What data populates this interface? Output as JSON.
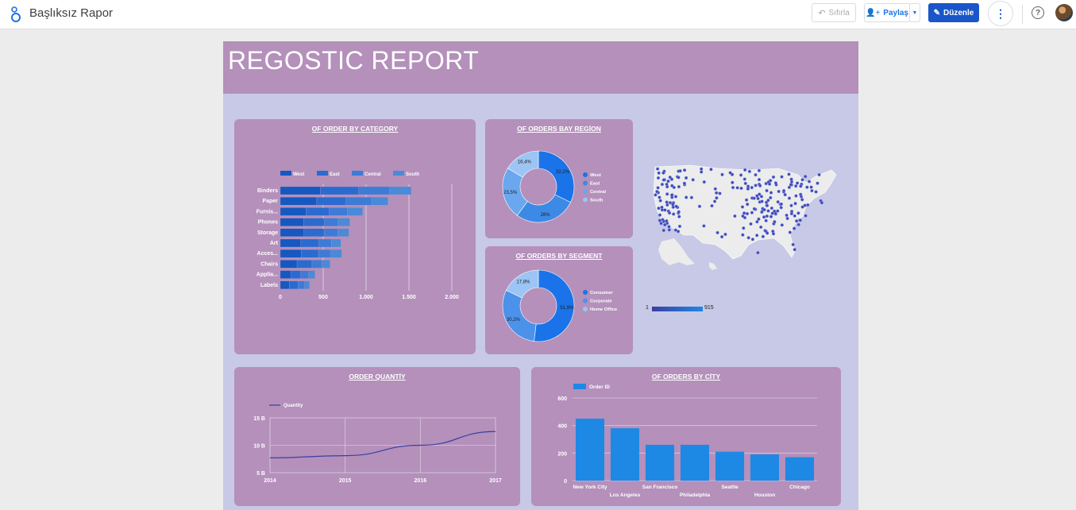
{
  "app": {
    "title": "Başlıksız Rapor"
  },
  "toolbar": {
    "reset_label": "Sıfırla",
    "share_label": "Paylaş",
    "edit_label": "Düzenle"
  },
  "report": {
    "title": "REGOSTIC REPORT"
  },
  "colors": {
    "accent": "#1a56c9",
    "card": "#b490bb",
    "canvas": "#c7c9e6"
  },
  "cards": {
    "category": {
      "title": "OF ORDER BY CATEGORY"
    },
    "region": {
      "title": "OF ORDERS BAY REGİON"
    },
    "segment": {
      "title": "OF ORDERS BY SEGMENT"
    },
    "quantity": {
      "title": "ORDER QUANTİY"
    },
    "city": {
      "title": "OF ORDERS BY CİTY"
    },
    "map": {
      "legend_min": "1",
      "legend_max": "915"
    }
  },
  "chart_data": [
    {
      "id": "category",
      "type": "bar",
      "orientation": "horizontal",
      "stacked": true,
      "title": "OF ORDER BY CATEGORY",
      "categories": [
        "Binders",
        "Paper",
        "Furnis...",
        "Phones",
        "Storage",
        "Art",
        "Acces...",
        "Chairs",
        "Applia...",
        "Labels"
      ],
      "series": [
        {
          "name": "West",
          "color": "#1558c0",
          "values": [
            465,
            425,
            300,
            270,
            275,
            240,
            245,
            195,
            125,
            105
          ]
        },
        {
          "name": "East",
          "color": "#2a6bd0",
          "values": [
            450,
            340,
            270,
            245,
            235,
            210,
            200,
            175,
            115,
            100
          ]
        },
        {
          "name": "Central",
          "color": "#3d7bd6",
          "values": [
            360,
            300,
            210,
            160,
            160,
            145,
            145,
            115,
            90,
            80
          ]
        },
        {
          "name": "South",
          "color": "#4a8ad8",
          "values": [
            250,
            190,
            180,
            135,
            130,
            110,
            125,
            95,
            75,
            55
          ]
        }
      ],
      "xticks": [
        "0",
        "500",
        "1.000",
        "1.500",
        "2.000"
      ],
      "xlim": [
        0,
        2000
      ],
      "legend": "top"
    },
    {
      "id": "region",
      "type": "pie",
      "donut": true,
      "title": "OF ORDERS BAY REGİON",
      "slices": [
        {
          "name": "West",
          "value": 32.2,
          "label": "32,2%",
          "color": "#1a73e8"
        },
        {
          "name": "East",
          "value": 28,
          "label": "28%",
          "color": "#3d8ae6"
        },
        {
          "name": "Central",
          "value": 23.5,
          "label": "23,5%",
          "color": "#6aa7ee"
        },
        {
          "name": "South",
          "value": 16.4,
          "label": "16,4%",
          "color": "#9cc4f4"
        }
      ],
      "legend": "right"
    },
    {
      "id": "segment",
      "type": "pie",
      "donut": true,
      "title": "OF ORDERS BY SEGMENT",
      "slices": [
        {
          "name": "Consumer",
          "value": 51.9,
          "label": "51,9%",
          "color": "#1a73e8"
        },
        {
          "name": "Corporate",
          "value": 30.2,
          "label": "30,2%",
          "color": "#4d92ea"
        },
        {
          "name": "Home Office",
          "value": 17.8,
          "label": "17,8%",
          "color": "#9cc4f4"
        }
      ],
      "legend": "right"
    },
    {
      "id": "quantity",
      "type": "line",
      "title": "ORDER QUANTİY",
      "x": [
        "2014",
        "2015",
        "2016",
        "2017"
      ],
      "series": [
        {
          "name": "Quantity",
          "values": [
            7.7,
            8.1,
            10.0,
            12.5
          ]
        }
      ],
      "yticks": [
        "5 B",
        "10 B",
        "15 B"
      ],
      "ylim": [
        5,
        15
      ],
      "grid": true,
      "legend": "top"
    },
    {
      "id": "city",
      "type": "bar",
      "title": "OF ORDERS BY CİTY",
      "categories": [
        "New York City",
        "Los Angeles",
        "San Francisco",
        "Philadelphia",
        "Seattle",
        "Houston",
        "Chicago"
      ],
      "series": [
        {
          "name": "Order ID",
          "values": [
            450,
            380,
            260,
            260,
            210,
            190,
            170
          ]
        }
      ],
      "yticks": [
        "0",
        "200",
        "400",
        "600"
      ],
      "ylim": [
        0,
        600
      ],
      "grid": true,
      "legend": "top-left"
    }
  ]
}
